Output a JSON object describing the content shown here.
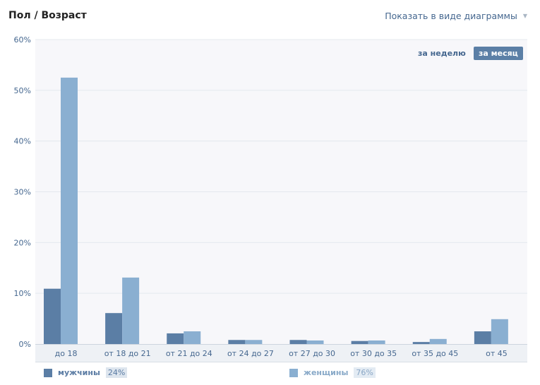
{
  "header": {
    "title": "Пол / Возраст",
    "view_select_label": "Показать в виде диаграммы"
  },
  "period": {
    "week_label": "за неделю",
    "month_label": "за месяц",
    "active": "month"
  },
  "legend": {
    "men_label": "мужчины",
    "men_pct": "24%",
    "women_label": "женщины",
    "women_pct": "76%"
  },
  "colors": {
    "men": "#5b7ea5",
    "women": "#8aafd1",
    "plot_bg": "#f7f7fa",
    "grid": "#e4e8ee",
    "axis_text": "#45678f"
  },
  "chart_data": {
    "type": "bar",
    "categories": [
      "до 18",
      "от 18 до 21",
      "от 21 до 24",
      "от 24 до 27",
      "от 27 до 30",
      "от 30 до 35",
      "от 35 до 45",
      "от 45"
    ],
    "series": [
      {
        "name": "мужчины",
        "values": [
          10.9,
          6.1,
          2.1,
          0.8,
          0.8,
          0.6,
          0.4,
          2.5
        ]
      },
      {
        "name": "женщины",
        "values": [
          52.5,
          13.1,
          2.5,
          0.8,
          0.7,
          0.7,
          1.0,
          4.9
        ]
      }
    ],
    "yticks": [
      "0%",
      "10%",
      "20%",
      "30%",
      "40%",
      "50%",
      "60%"
    ],
    "ylim": [
      0,
      60
    ],
    "grid": true,
    "legend_position": "bottom"
  }
}
